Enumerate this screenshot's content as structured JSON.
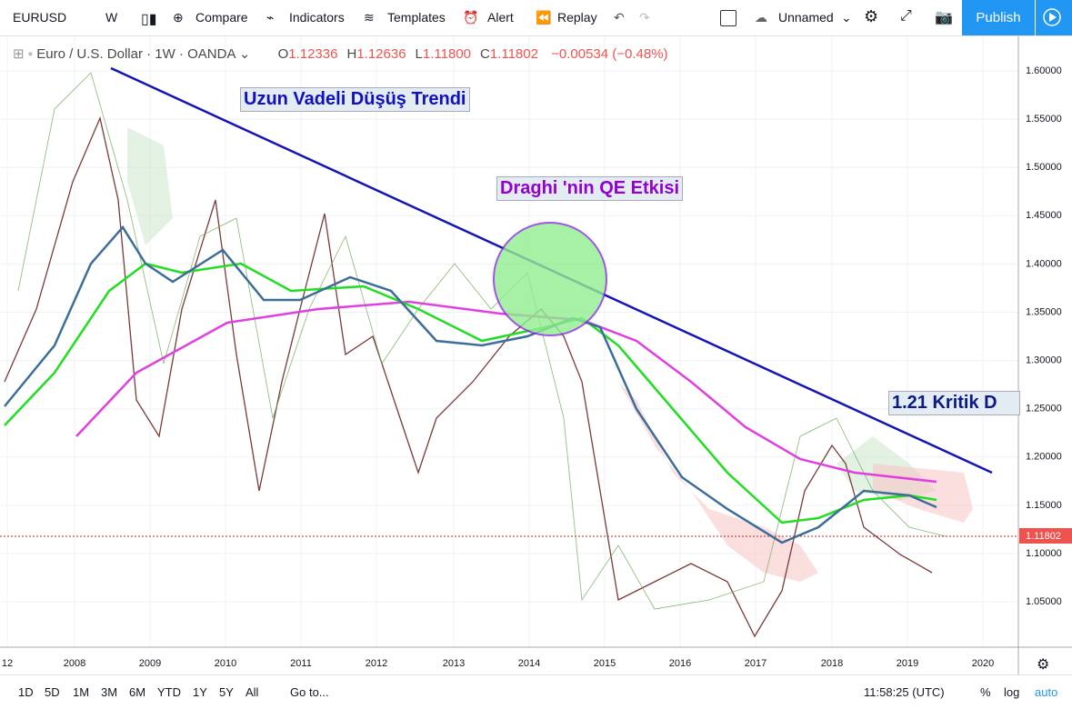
{
  "toolbar": {
    "symbol": "EURUSD",
    "interval": "W",
    "buttons": [
      "Compare",
      "Indicators",
      "Templates",
      "Alert",
      "Replay"
    ],
    "layout": "Unnamed",
    "publish": "Publish"
  },
  "legend": {
    "title": "Euro / U.S. Dollar · 1W · OANDA",
    "ohlc": [
      {
        "label": "O",
        "value": "1.12336"
      },
      {
        "label": "H",
        "value": "1.12636"
      },
      {
        "label": "L",
        "value": "1.11800"
      },
      {
        "label": "C",
        "value": "1.11802"
      }
    ],
    "change": "−0.00534 (−0.48%)"
  },
  "annotations": [
    "Uzun Vadeli Düşüş Trendi",
    "Draghi 'nin QE Etkisi",
    "1.21 Kritik D"
  ],
  "price_axis": {
    "ticks": [
      "1.60000",
      "1.55000",
      "1.50000",
      "1.45000",
      "1.40000",
      "1.35000",
      "1.30000",
      "1.25000",
      "1.20000",
      "1.15000",
      "1.10000",
      "1.05000"
    ],
    "last_price": "1.11802"
  },
  "time_axis": {
    "labels": [
      "12",
      "2008",
      "2009",
      "2010",
      "2011",
      "2012",
      "2013",
      "2014",
      "2015",
      "2016",
      "2017",
      "2018",
      "2019",
      "2020"
    ]
  },
  "bottom_bar": {
    "ranges": [
      "1D",
      "5D",
      "1M",
      "3M",
      "6M",
      "YTD",
      "1Y",
      "5Y",
      "All"
    ],
    "goto": "Go to...",
    "time": "11:58:25 (UTC)",
    "toggles": [
      "%",
      "log",
      "auto"
    ]
  }
}
